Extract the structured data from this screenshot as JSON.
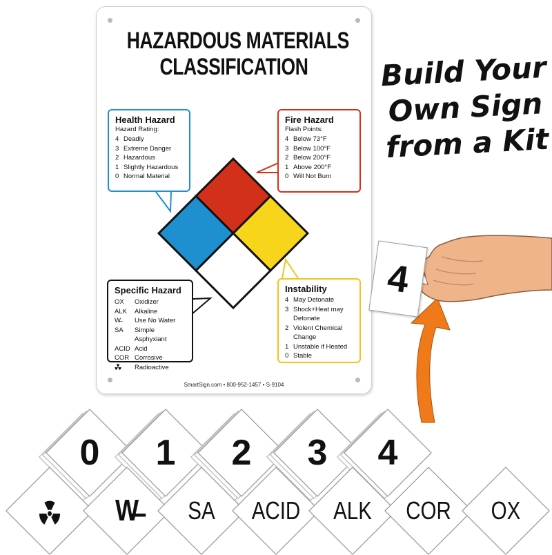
{
  "sign": {
    "title_line1": "HAZARDOUS MATERIALS",
    "title_line2": "CLASSIFICATION",
    "footer": "SmartSign.com • 800-952-1457 • S-9104",
    "colors": {
      "health": "#1e8fcf",
      "fire": "#d3301a",
      "instability": "#f7d51b",
      "specific": "#ffffff",
      "outline": "#111111"
    },
    "health": {
      "title": "Health Hazard",
      "subtitle": "Hazard Rating:",
      "items": [
        {
          "code": "4",
          "text": "Deadly"
        },
        {
          "code": "3",
          "text": "Extreme Danger"
        },
        {
          "code": "2",
          "text": "Hazardous"
        },
        {
          "code": "1",
          "text": "Slightly Hazardous"
        },
        {
          "code": "0",
          "text": "Normal Material"
        }
      ]
    },
    "fire": {
      "title": "Fire Hazard",
      "subtitle": "Flash Points:",
      "items": [
        {
          "code": "4",
          "text": "Below 73°F"
        },
        {
          "code": "3",
          "text": "Below 100°F"
        },
        {
          "code": "2",
          "text": "Below 200°F"
        },
        {
          "code": "1",
          "text": "Above 200°F"
        },
        {
          "code": "0",
          "text": "Will Not Burn"
        }
      ]
    },
    "specific": {
      "title": "Specific Hazard",
      "items": [
        {
          "code": "OX",
          "text": "Oxidizer"
        },
        {
          "code": "ALK",
          "text": "Alkaline"
        },
        {
          "code": "W̶",
          "text": "Use No Water"
        },
        {
          "code": "SA",
          "text": "Simple Asphyxiant"
        },
        {
          "code": "ACID",
          "text": "Acid"
        },
        {
          "code": "COR",
          "text": "Corrosive"
        },
        {
          "code": "",
          "text": "Radioactive",
          "icon": "radiation-icon"
        }
      ]
    },
    "instability": {
      "title": "Instability",
      "items": [
        {
          "code": "4",
          "text": "May Detonate"
        },
        {
          "code": "3",
          "text": "Shock+Heat may"
        },
        {
          "code": "",
          "text": "Detonate"
        },
        {
          "code": "2",
          "text": "Violent Chemical"
        },
        {
          "code": "",
          "text": "Change"
        },
        {
          "code": "1",
          "text": "Unstable if Heated"
        },
        {
          "code": "0",
          "text": "Stable"
        }
      ]
    }
  },
  "headline": {
    "line1": "Build Your",
    "line2": "Own Sign",
    "line3": "from a Kit"
  },
  "hand_card": "4",
  "arrow_color": "#f07a1a",
  "number_tiles": [
    "0",
    "1",
    "2",
    "3",
    "4"
  ],
  "label_tiles": [
    {
      "text": "",
      "icon": "radiation-icon"
    },
    {
      "text": "W̶"
    },
    {
      "text": "SA"
    },
    {
      "text": "ACID"
    },
    {
      "text": "ALK"
    },
    {
      "text": "COR"
    },
    {
      "text": "OX"
    }
  ]
}
